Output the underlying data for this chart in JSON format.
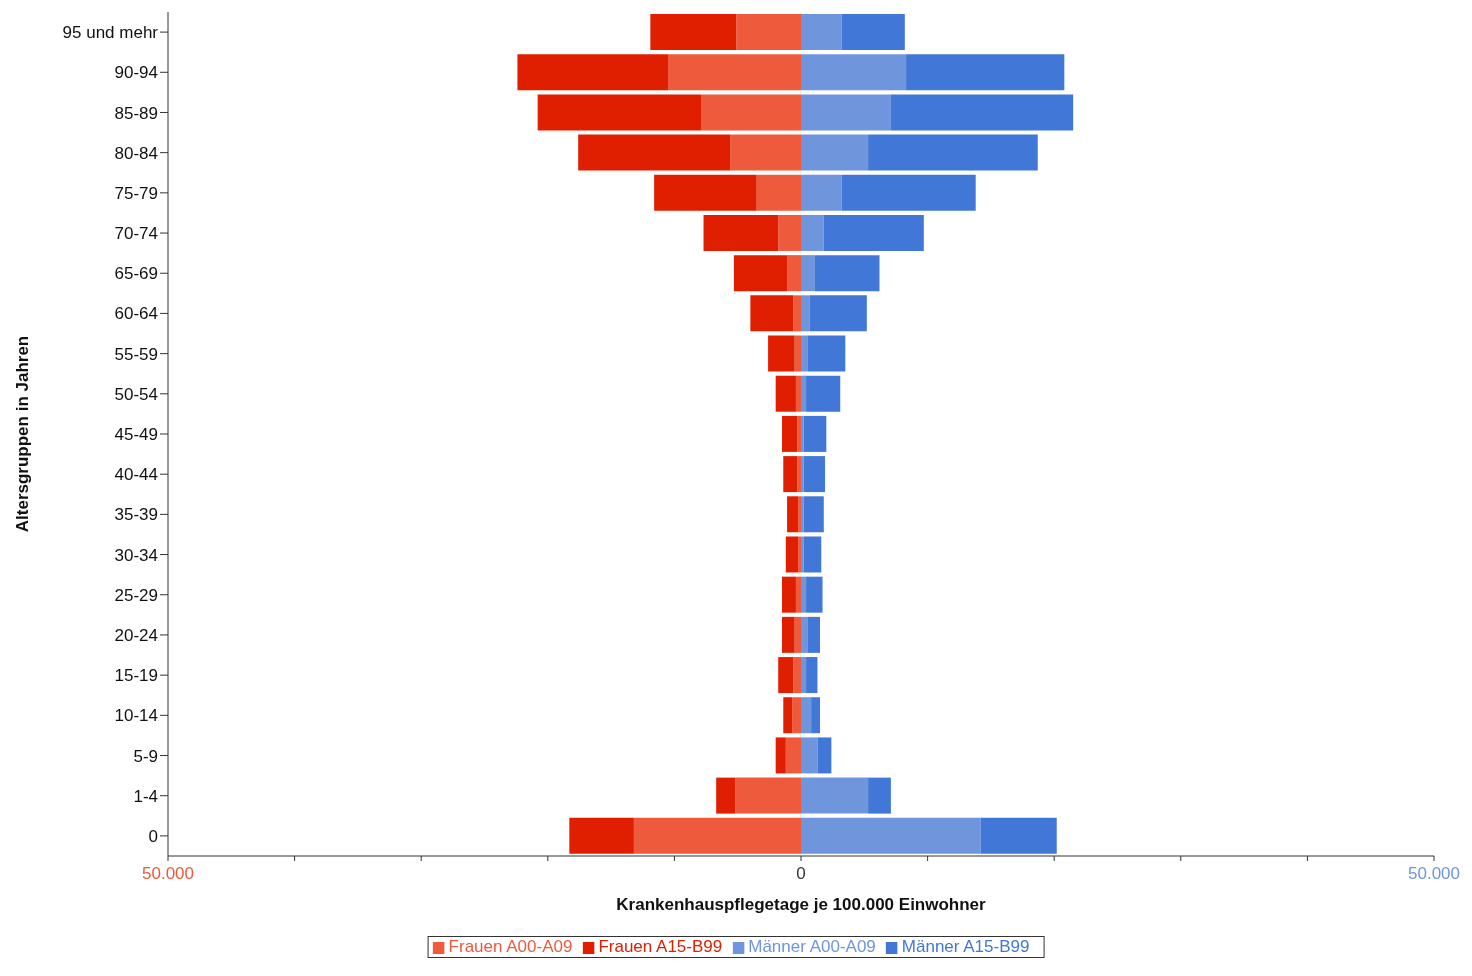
{
  "chart_data": {
    "type": "bar",
    "orientation": "horizontal",
    "stacked": true,
    "ylabel": "Altersgruppen in Jahren",
    "xlabel": "Krankenhauspflegetage je 100.000 Einwohner",
    "categories": [
      "95 und mehr",
      "90-94",
      "85-89",
      "80-84",
      "75-79",
      "70-74",
      "65-69",
      "60-64",
      "55-59",
      "50-54",
      "45-49",
      "40-44",
      "35-39",
      "30-34",
      "25-29",
      "20-24",
      "15-19",
      "10-14",
      "5-9",
      "1-4",
      "0"
    ],
    "series": [
      {
        "name": "Frauen A00-A09",
        "color": "#ee5a3c",
        "values": [
          -5100,
          -10500,
          -7900,
          -5600,
          -3500,
          -1800,
          -1100,
          -600,
          -500,
          -400,
          -300,
          -300,
          -200,
          -200,
          -400,
          -500,
          -600,
          -700,
          -1200,
          -5200,
          -13200
        ]
      },
      {
        "name": "Frauen A15-B99",
        "color": "#e01e00",
        "values": [
          -6800,
          -11900,
          -12900,
          -12000,
          -8100,
          -5900,
          -4200,
          -3400,
          -2100,
          -1600,
          -1200,
          -1100,
          -900,
          -1000,
          -1100,
          -1000,
          -1200,
          -700,
          -800,
          -1500,
          -5100
        ]
      },
      {
        "name": "Männer A00-A09",
        "color": "#6f95dd",
        "values": [
          3200,
          8300,
          7100,
          5300,
          3200,
          1800,
          1100,
          700,
          500,
          400,
          200,
          200,
          200,
          200,
          400,
          500,
          400,
          800,
          1300,
          5300,
          14200
        ]
      },
      {
        "name": "Männer A15-B99",
        "color": "#4177d6",
        "values": [
          5000,
          12500,
          14400,
          13400,
          10600,
          7900,
          5100,
          4500,
          3000,
          2700,
          1800,
          1700,
          1600,
          1400,
          1300,
          1000,
          900,
          700,
          1100,
          1800,
          6000
        ]
      }
    ],
    "xlim": [
      -50000,
      50000
    ],
    "xticks": [
      {
        "value": -50000,
        "label": "50.000"
      },
      {
        "value": -40000,
        "label": null
      },
      {
        "value": -30000,
        "label": null
      },
      {
        "value": -20000,
        "label": null
      },
      {
        "value": -10000,
        "label": null
      },
      0,
      {
        "value": 10000,
        "label": null
      },
      {
        "value": 20000,
        "label": null
      },
      {
        "value": 30000,
        "label": null
      },
      {
        "value": 40000,
        "label": null
      },
      {
        "value": 50000,
        "label": "50.000"
      }
    ],
    "grid": false,
    "legend": "bottom"
  }
}
